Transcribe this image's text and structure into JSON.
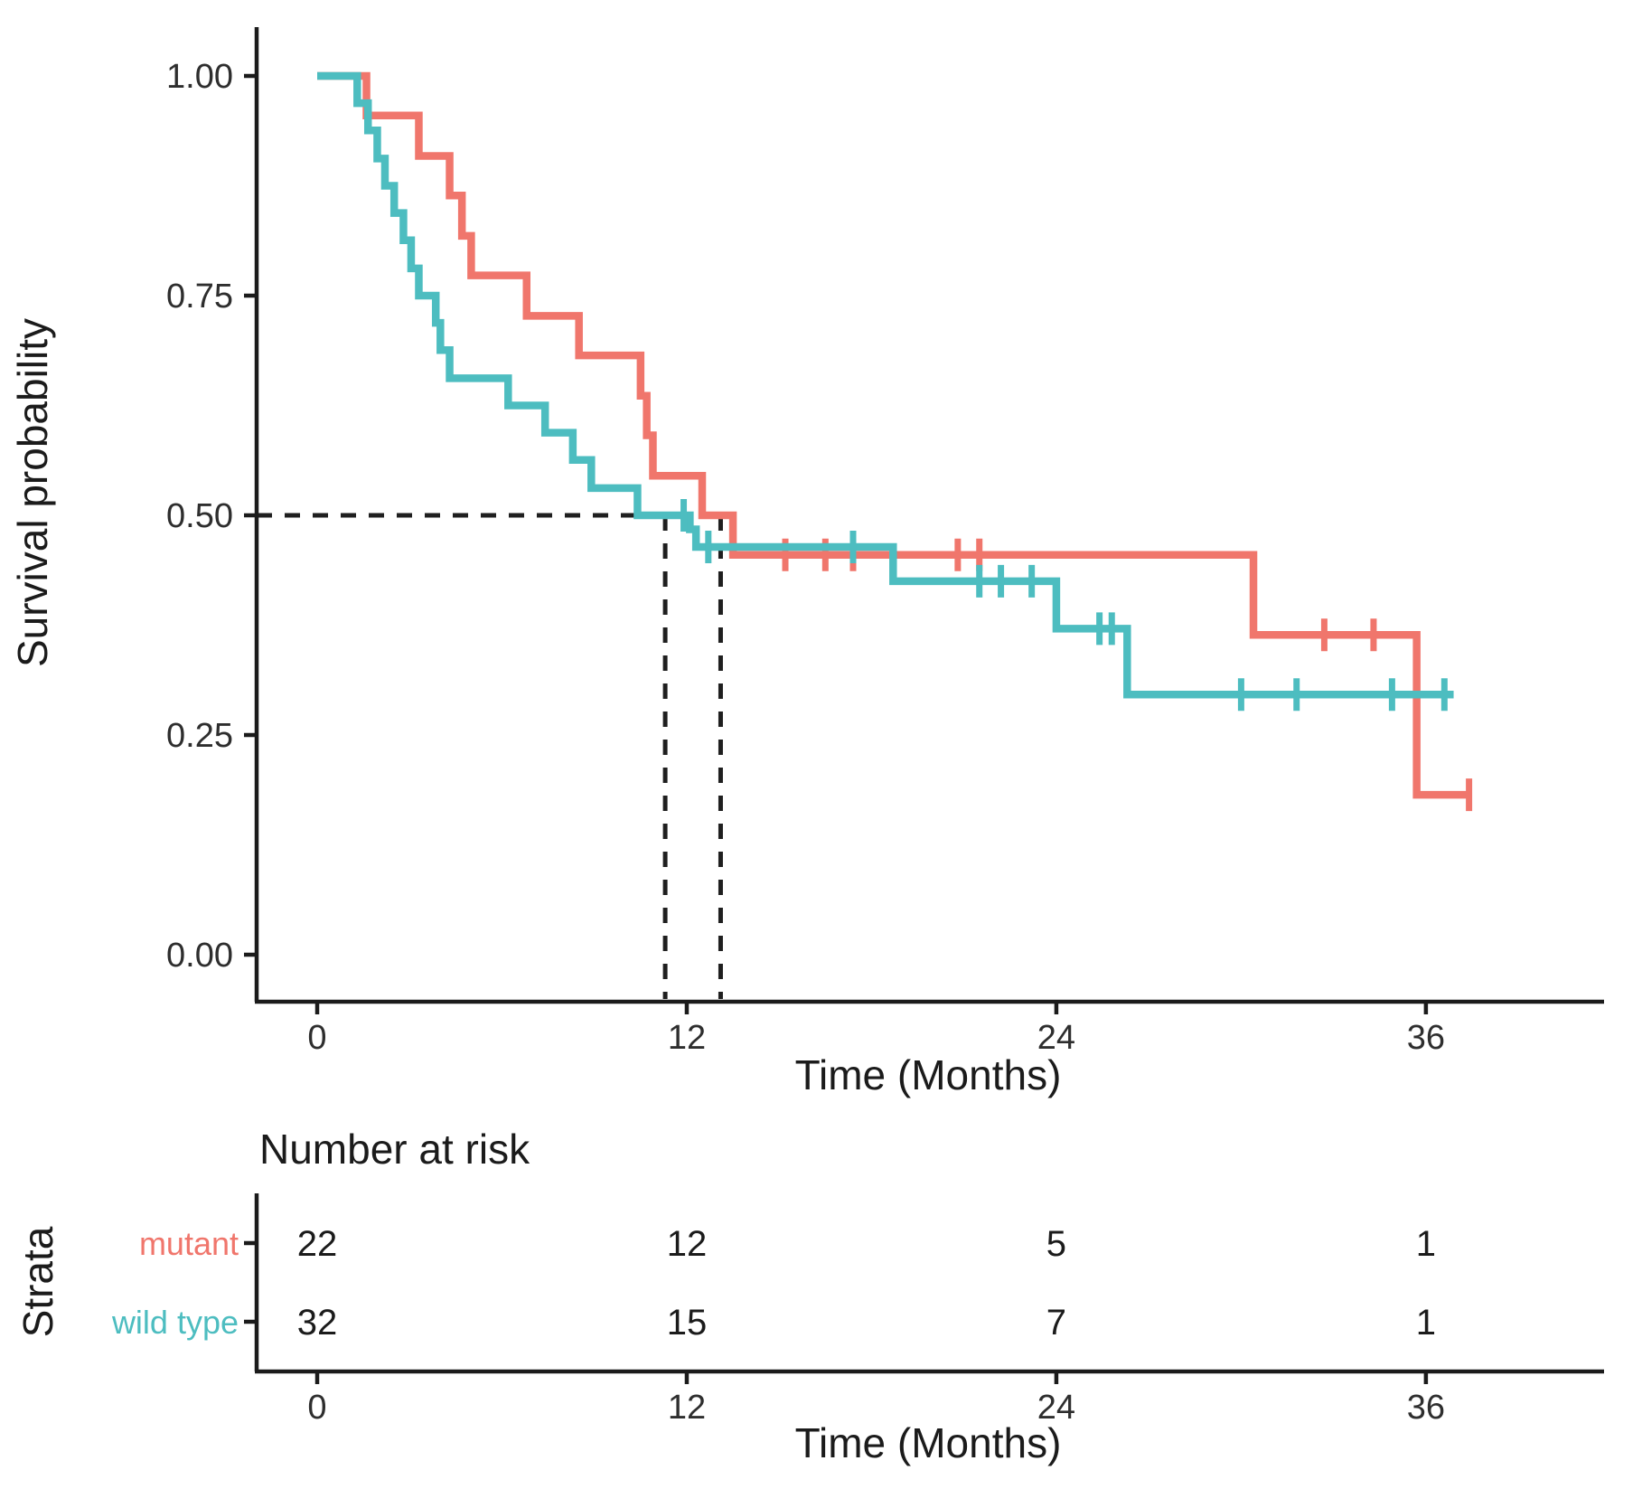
{
  "chart_data": {
    "type": "line",
    "subtype": "kaplan-meier-step",
    "title": "",
    "xlabel": "Time (Months)",
    "ylabel": "Survival probability",
    "xlim": [
      0,
      38.5
    ],
    "ylim": [
      0,
      1
    ],
    "x_tick_labels": [
      "0",
      "12",
      "24",
      "36"
    ],
    "x_tick_values": [
      0,
      12,
      24,
      36
    ],
    "y_tick_labels": [
      "1.00",
      "0.75",
      "0.50",
      "0.25",
      "0.00"
    ],
    "y_tick_values": [
      1.0,
      0.75,
      0.5,
      0.25,
      0.0
    ],
    "grid": false,
    "legend_position": "none",
    "median_reference": {
      "probability": 0.5,
      "times": [
        11.3,
        13.1
      ]
    },
    "series": [
      {
        "name": "mutant",
        "color": "#F0766C",
        "median_months": 13.1,
        "steps": [
          [
            0,
            1.0
          ],
          [
            1.6,
            0.955
          ],
          [
            3.3,
            0.909
          ],
          [
            4.3,
            0.864
          ],
          [
            4.7,
            0.818
          ],
          [
            5.0,
            0.773
          ],
          [
            6.8,
            0.727
          ],
          [
            8.5,
            0.682
          ],
          [
            10.5,
            0.636
          ],
          [
            10.7,
            0.591
          ],
          [
            10.9,
            0.545
          ],
          [
            12.5,
            0.5
          ],
          [
            13.5,
            0.455
          ],
          [
            30.4,
            0.364
          ],
          [
            35.7,
            0.182
          ],
          [
            37.5,
            0.182
          ]
        ],
        "censors": [
          [
            15.2,
            0.455
          ],
          [
            16.5,
            0.455
          ],
          [
            17.4,
            0.455
          ],
          [
            20.8,
            0.455
          ],
          [
            21.5,
            0.455
          ],
          [
            32.7,
            0.364
          ],
          [
            34.3,
            0.364
          ],
          [
            37.4,
            0.182
          ]
        ]
      },
      {
        "name": "wild type",
        "color": "#4DBDC0",
        "median_months": 11.3,
        "steps": [
          [
            0,
            1.0
          ],
          [
            1.3,
            0.969
          ],
          [
            1.65,
            0.938
          ],
          [
            1.95,
            0.906
          ],
          [
            2.2,
            0.875
          ],
          [
            2.5,
            0.844
          ],
          [
            2.8,
            0.813
          ],
          [
            3.05,
            0.781
          ],
          [
            3.3,
            0.75
          ],
          [
            3.85,
            0.719
          ],
          [
            4.0,
            0.688
          ],
          [
            4.3,
            0.656
          ],
          [
            6.2,
            0.625
          ],
          [
            7.4,
            0.594
          ],
          [
            8.3,
            0.563
          ],
          [
            8.9,
            0.531
          ],
          [
            10.4,
            0.5
          ],
          [
            12.1,
            0.484
          ],
          [
            12.3,
            0.464
          ],
          [
            18.7,
            0.425
          ],
          [
            24.0,
            0.371
          ],
          [
            26.3,
            0.296
          ],
          [
            36.9,
            0.296
          ]
        ],
        "censors": [
          [
            11.9,
            0.5
          ],
          [
            12.7,
            0.464
          ],
          [
            17.4,
            0.464
          ],
          [
            21.5,
            0.425
          ],
          [
            22.2,
            0.425
          ],
          [
            23.2,
            0.425
          ],
          [
            25.4,
            0.371
          ],
          [
            25.8,
            0.371
          ],
          [
            30.0,
            0.296
          ],
          [
            31.8,
            0.296
          ],
          [
            34.9,
            0.296
          ],
          [
            36.6,
            0.296
          ]
        ]
      }
    ]
  },
  "risk_table": {
    "title": "Number at risk",
    "axis_label": "Strata",
    "xlabel": "Time (Months)",
    "time_points": [
      0,
      12,
      24,
      36
    ],
    "time_labels": [
      "0",
      "12",
      "24",
      "36"
    ],
    "rows": [
      {
        "name": "mutant",
        "color": "#F0766C",
        "counts": [
          "22",
          "12",
          "5",
          "1"
        ]
      },
      {
        "name": "wild type",
        "color": "#4DBDC0",
        "counts": [
          "32",
          "15",
          "7",
          "1"
        ]
      }
    ]
  },
  "colors": {
    "mutant": "#F0766C",
    "wild_type": "#4DBDC0",
    "axis": "#1b1b1b",
    "tick_text": "#2e2e2e",
    "median_dash": "#1f1f1f",
    "background": "#ffffff"
  }
}
